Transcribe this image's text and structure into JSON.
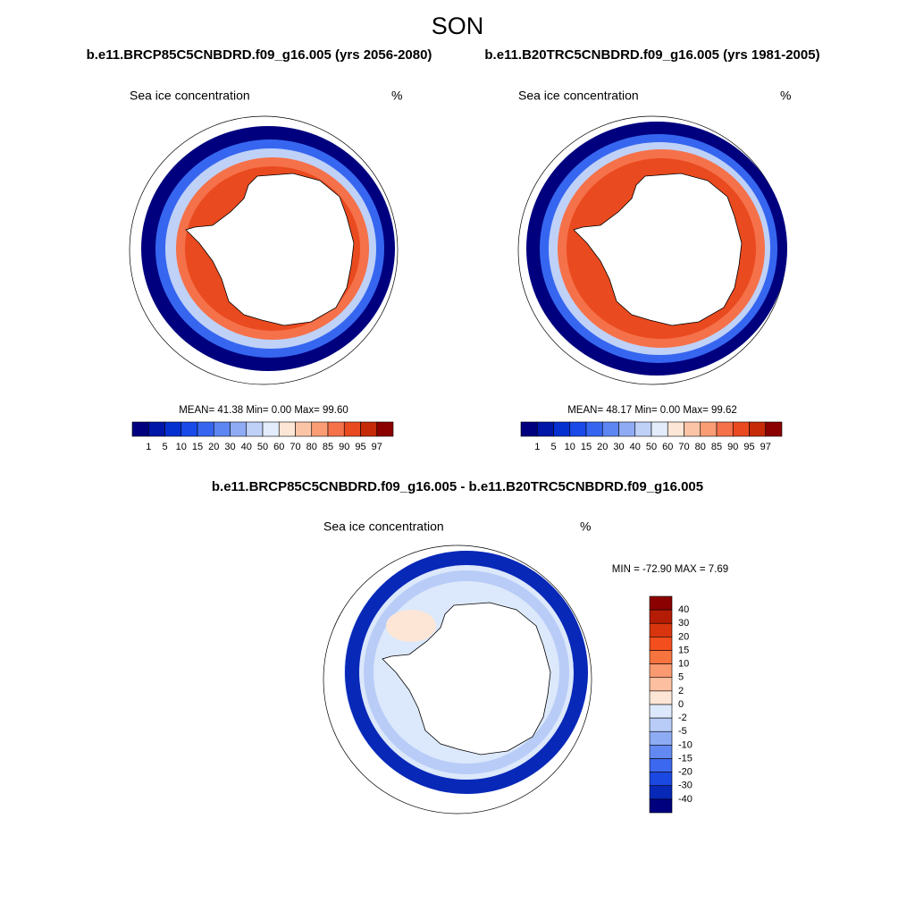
{
  "title": "SON",
  "panels": [
    {
      "case": "b.e11.BRCP85C5CNBDRD.f09_g16.005 (yrs 2056-2080)",
      "variable": "Sea ice concentration",
      "units": "%",
      "stats": "MEAN=  41.38  Min=   0.00  Max=  99.60",
      "colorbar": {
        "labels": [
          "1",
          "5",
          "10",
          "15",
          "20",
          "30",
          "40",
          "50",
          "60",
          "70",
          "80",
          "85",
          "90",
          "95",
          "97"
        ],
        "colors": [
          "#00007f",
          "#0016a8",
          "#0530d0",
          "#1a4ae8",
          "#3666f0",
          "#5d86f2",
          "#8fabf3",
          "#bfd1f7",
          "#e2ecfb",
          "#fde6d6",
          "#fcc4a6",
          "#fa9d75",
          "#f5714a",
          "#ea4a1f",
          "#c62a08",
          "#8b0000"
        ]
      }
    },
    {
      "case": "b.e11.B20TRC5CNBDRD.f09_g16.005 (yrs 1981-2005)",
      "variable": "Sea ice concentration",
      "units": "%",
      "stats": "MEAN=  48.17  Min=   0.00  Max=  99.62",
      "colorbar": {
        "labels": [
          "1",
          "5",
          "10",
          "15",
          "20",
          "30",
          "40",
          "50",
          "60",
          "70",
          "80",
          "85",
          "90",
          "95",
          "97"
        ],
        "colors": [
          "#00007f",
          "#0016a8",
          "#0530d0",
          "#1a4ae8",
          "#3666f0",
          "#5d86f2",
          "#8fabf3",
          "#bfd1f7",
          "#e2ecfb",
          "#fde6d6",
          "#fcc4a6",
          "#fa9d75",
          "#f5714a",
          "#ea4a1f",
          "#c62a08",
          "#8b0000"
        ]
      }
    }
  ],
  "difference": {
    "title": "b.e11.BRCP85C5CNBDRD.f09_g16.005 - b.e11.B20TRC5CNBDRD.f09_g16.005",
    "variable": "Sea ice concentration",
    "units": "%",
    "stats": "MIN = -72.90 MAX =   7.69",
    "colorbar": {
      "labels": [
        "40",
        "30",
        "20",
        "15",
        "10",
        "5",
        "2",
        "0",
        "-2",
        "-5",
        "-10",
        "-15",
        "-20",
        "-30",
        "-40"
      ],
      "colors": [
        "#8b0000",
        "#b51c05",
        "#d8350f",
        "#f24e1e",
        "#f8743f",
        "#fa9a70",
        "#fcbfa0",
        "#fde6d6",
        "#dce8fb",
        "#b8ccf7",
        "#8eacf4",
        "#6289f1",
        "#3c68ef",
        "#1c48e2",
        "#0828b8",
        "#00007f"
      ]
    }
  }
}
